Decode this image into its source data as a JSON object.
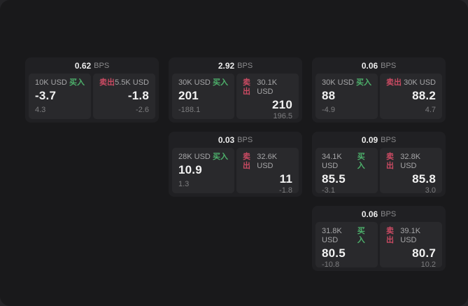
{
  "labels": {
    "bps": "BPS",
    "buy": "买入",
    "sell": "卖出"
  },
  "colors": {
    "page_bg": "#19191b",
    "card_bg": "#202023",
    "panel_bg": "#29292c",
    "buy_green": "#4db06b",
    "sell_red": "#c94a62"
  },
  "cards": [
    {
      "bps": "0.62",
      "buy": {
        "amount": "10K USD",
        "value": "-3.7",
        "sub": "4.3"
      },
      "sell": {
        "amount": "5.5K USD",
        "value": "-1.8",
        "sub": "-2.6"
      }
    },
    {
      "bps": "2.92",
      "buy": {
        "amount": "30K USD",
        "value": "201",
        "sub": "-188.1"
      },
      "sell": {
        "amount": "30.1K USD",
        "value": "210",
        "sub": "196.5"
      }
    },
    {
      "bps": "0.06",
      "buy": {
        "amount": "30K USD",
        "value": "88",
        "sub": "-4.9"
      },
      "sell": {
        "amount": "30K USD",
        "value": "88.2",
        "sub": "4.7"
      }
    },
    {
      "bps": "0.03",
      "buy": {
        "amount": "28K USD",
        "value": "10.9",
        "sub": "1.3"
      },
      "sell": {
        "amount": "32.6K USD",
        "value": "11",
        "sub": "-1.8"
      }
    },
    {
      "bps": "0.09",
      "buy": {
        "amount": "34.1K USD",
        "value": "85.5",
        "sub": "-3.1"
      },
      "sell": {
        "amount": "32.8K USD",
        "value": "85.8",
        "sub": "3.0"
      }
    },
    {
      "bps": "0.06",
      "buy": {
        "amount": "31.8K USD",
        "value": "80.5",
        "sub": "-10.8"
      },
      "sell": {
        "amount": "39.1K USD",
        "value": "80.7",
        "sub": "10.2"
      }
    }
  ]
}
